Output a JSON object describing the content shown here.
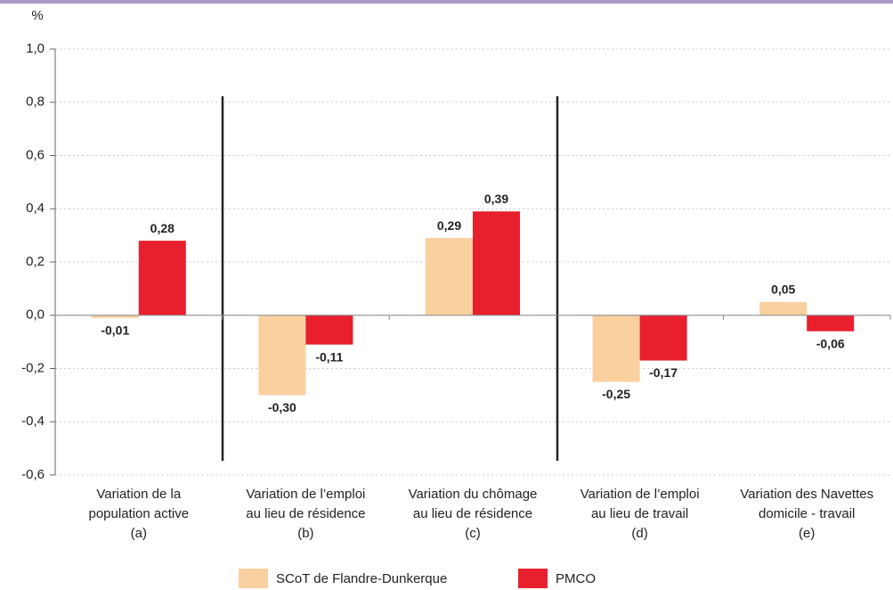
{
  "chart_data": {
    "type": "bar",
    "y_label": "%",
    "categories": [
      [
        "Variation de la",
        "population active",
        "(a)"
      ],
      [
        "Variation de l’emploi",
        "au lieu de résidence",
        "(b)"
      ],
      [
        "Variation du chômage",
        "au lieu de résidence",
        "(c)"
      ],
      [
        "Variation de l’emploi",
        "au lieu de travail",
        "(d)"
      ],
      [
        "Variation des Navettes",
        "domicile - travail",
        "(e)"
      ]
    ],
    "series": [
      {
        "name": "SCoT de Flandre-Dunkerque",
        "color": "#fbd09f",
        "values": [
          -0.01,
          -0.3,
          0.29,
          -0.25,
          0.05
        ],
        "value_labels": [
          "-0,01",
          "-0,30",
          "0,29",
          "-0,25",
          "0,05"
        ]
      },
      {
        "name": "PMCO",
        "color": "#e8202e",
        "values": [
          0.28,
          -0.11,
          0.39,
          -0.17,
          -0.06
        ],
        "value_labels": [
          "0,28",
          "-0,11",
          "0,39",
          "-0,17",
          "-0,06"
        ]
      }
    ],
    "ylim": [
      -0.6,
      1.0
    ],
    "yticks": [
      {
        "value": -0.6,
        "label": "-0,6"
      },
      {
        "value": -0.4,
        "label": "-0,4"
      },
      {
        "value": -0.2,
        "label": "-0,2"
      },
      {
        "value": 0,
        "label": "0,0"
      },
      {
        "value": 0.2,
        "label": "0,2"
      },
      {
        "value": 0.4,
        "label": "0,4"
      },
      {
        "value": 0.6,
        "label": "0,6"
      },
      {
        "value": 0.8,
        "label": "0,8"
      },
      {
        "value": 1.0,
        "label": "1,0"
      }
    ],
    "grid": true
  }
}
